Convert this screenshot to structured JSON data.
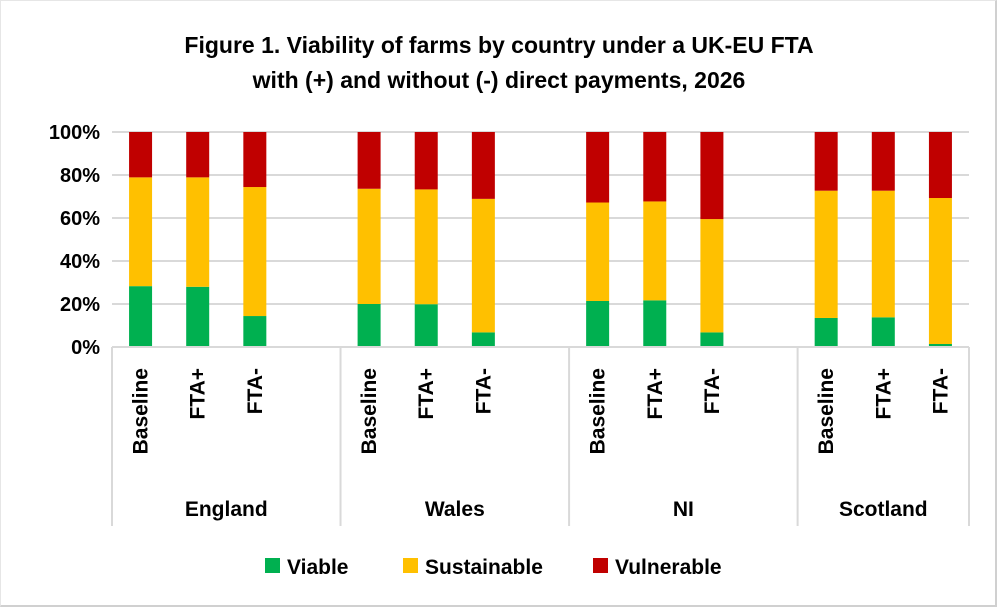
{
  "chart_data": {
    "type": "bar",
    "stacked": true,
    "title": "Figure 1. Viability of farms by country under a UK-EU FTA",
    "subtitle": "with (+) and without (-) direct payments, 2026",
    "xlabel": "",
    "ylabel": "",
    "ylim": [
      0,
      100
    ],
    "yticks": [
      "0%",
      "20%",
      "40%",
      "60%",
      "80%",
      "100%"
    ],
    "grid": true,
    "legend": "bottom",
    "groups": [
      {
        "name": "England",
        "categories": [
          "Baseline",
          "FTA+",
          "FTA-"
        ]
      },
      {
        "name": "Wales",
        "categories": [
          "Baseline",
          "FTA+",
          "FTA-"
        ]
      },
      {
        "name": "NI",
        "categories": [
          "Baseline",
          "FTA+",
          "FTA-"
        ]
      },
      {
        "name": "Scotland",
        "categories": [
          "Baseline",
          "FTA+",
          "FTA-"
        ]
      }
    ],
    "series": [
      {
        "name": "Viable",
        "color": "#00b050",
        "values": [
          28.3,
          28.0,
          14.4,
          20.0,
          19.9,
          6.8,
          21.4,
          21.7,
          6.8,
          13.5,
          13.8,
          1.4
        ]
      },
      {
        "name": "Sustainable",
        "color": "#ffc000",
        "values": [
          50.6,
          50.9,
          60.0,
          53.6,
          53.4,
          62.1,
          45.8,
          46.0,
          52.7,
          59.2,
          58.9,
          67.9
        ]
      },
      {
        "name": "Vulnerable",
        "color": "#c00000",
        "values": [
          21.1,
          21.1,
          25.6,
          26.4,
          26.7,
          31.1,
          32.8,
          32.3,
          40.5,
          27.3,
          27.3,
          30.7
        ]
      }
    ]
  }
}
